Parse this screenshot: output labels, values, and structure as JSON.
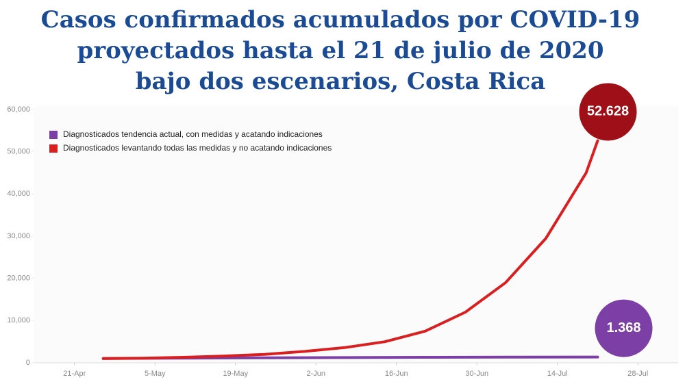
{
  "chart_data": {
    "type": "line",
    "title": [
      "Casos confirmados acumulados por COVID-19",
      "proyectados hasta el 21 de julio de 2020",
      "bajo dos escenarios, Costa Rica"
    ],
    "xlim": [
      "14-Apr",
      "4-Aug"
    ],
    "xticks": [
      "21-Apr",
      "5-May",
      "19-May",
      "2-Jun",
      "16-Jun",
      "30-Jun",
      "14-Jul",
      "28-Jul"
    ],
    "ylim": [
      0,
      60000
    ],
    "yticks": [
      0,
      {
        "value": 10000,
        "label": "10,000"
      },
      {
        "value": 20000,
        "label": "20,000"
      },
      {
        "value": 30000,
        "label": "30,000"
      },
      {
        "value": 40000,
        "label": "40,000"
      },
      {
        "value": 50000,
        "label": "50,000"
      },
      {
        "value": 60000,
        "label": "60,000"
      }
    ],
    "legend": "top-left",
    "series": [
      {
        "name": "Diagnosticados tendencia actual, con medidas y acatando indicaciones",
        "color": "#7b3fa6",
        "x": [
          "26-Apr",
          "10-May",
          "24-May",
          "7-Jun",
          "21-Jun",
          "5-Jul",
          "21-Jul"
        ],
        "values": [
          1000,
          1100,
          1180,
          1240,
          1290,
          1330,
          1368
        ],
        "value_labels": [
          null,
          null,
          null,
          null,
          null,
          null,
          "1.368"
        ]
      },
      {
        "name": "Diagnosticados levantando todas las medidas y no acatando indicaciones",
        "color": "#d91f1f",
        "x": [
          "26-Apr",
          "3-May",
          "10-May",
          "17-May",
          "24-May",
          "31-May",
          "7-Jun",
          "14-Jun",
          "21-Jun",
          "28-Jun",
          "5-Jul",
          "12-Jul",
          "19-Jul",
          "21-Jul"
        ],
        "values": [
          1000,
          1100,
          1300,
          1600,
          2000,
          2700,
          3600,
          5000,
          7500,
          12000,
          19000,
          29500,
          45000,
          52628
        ],
        "value_labels": [
          null,
          null,
          null,
          null,
          null,
          null,
          null,
          null,
          null,
          null,
          null,
          null,
          null,
          "52.628"
        ]
      }
    ]
  }
}
